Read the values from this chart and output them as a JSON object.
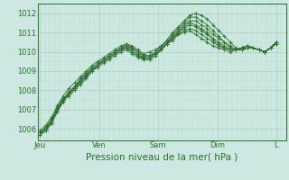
{
  "background_color": "#cce8e0",
  "grid_major_color": "#aaccbb",
  "grid_minor_color": "#bbddcc",
  "line_color": "#2d6e2d",
  "ylabel_values": [
    1006,
    1007,
    1008,
    1009,
    1010,
    1011,
    1012
  ],
  "xtick_labels": [
    "Jeu",
    "Ven",
    "Sam",
    "Dim",
    "L"
  ],
  "xtick_positions": [
    0,
    24,
    48,
    72,
    96
  ],
  "xlabel": "Pression niveau de la mer( hPa )",
  "xlim": [
    -1,
    100
  ],
  "ylim": [
    1005.4,
    1012.5
  ],
  "series": [
    [
      1005.8,
      1006.0,
      1006.3,
      1007.0,
      1007.5,
      1007.7,
      1008.0,
      1008.3,
      1008.6,
      1009.0,
      1009.3,
      1009.6,
      1009.8,
      1010.0,
      1010.2,
      1010.4,
      1010.3,
      1010.1,
      1009.9,
      1010.0,
      1010.1,
      1010.3,
      1010.5,
      1010.7,
      1010.9,
      1011.0,
      1011.1,
      1010.9,
      1010.7,
      1010.5,
      1010.3,
      1010.2,
      1010.1,
      1010.0,
      1010.1,
      1010.2,
      1010.3,
      1010.2,
      1010.1,
      1010.0,
      1010.2,
      1010.4
    ],
    [
      1005.8,
      1006.1,
      1006.5,
      1007.1,
      1007.6,
      1007.8,
      1008.1,
      1008.4,
      1008.7,
      1009.0,
      1009.3,
      1009.5,
      1009.7,
      1009.9,
      1010.1,
      1010.3,
      1010.2,
      1010.0,
      1009.8,
      1009.8,
      1009.9,
      1010.1,
      1010.4,
      1010.6,
      1010.9,
      1011.1,
      1011.2,
      1011.1,
      1010.9,
      1010.7,
      1010.5,
      1010.3,
      1010.2,
      1010.1,
      1010.1,
      1010.2,
      1010.3,
      1010.2,
      1010.1,
      1010.0,
      1010.2,
      1010.4
    ],
    [
      1005.8,
      1006.0,
      1006.4,
      1007.0,
      1007.5,
      1007.9,
      1008.2,
      1008.5,
      1008.8,
      1009.1,
      1009.3,
      1009.5,
      1009.7,
      1009.9,
      1010.1,
      1010.2,
      1010.0,
      1009.8,
      1009.7,
      1009.7,
      1009.9,
      1010.1,
      1010.4,
      1010.7,
      1011.0,
      1011.2,
      1011.4,
      1011.3,
      1011.1,
      1010.9,
      1010.6,
      1010.4,
      1010.2,
      1010.1,
      1010.1,
      1010.2,
      1010.3,
      1010.2,
      1010.1,
      1010.0,
      1010.2,
      1010.5
    ],
    [
      1005.7,
      1005.9,
      1006.3,
      1006.9,
      1007.4,
      1007.8,
      1008.1,
      1008.4,
      1008.7,
      1009.0,
      1009.2,
      1009.4,
      1009.6,
      1009.8,
      1010.0,
      1010.1,
      1009.9,
      1009.7,
      1009.6,
      1009.6,
      1009.8,
      1010.1,
      1010.4,
      1010.7,
      1011.0,
      1011.3,
      1011.5,
      1011.4,
      1011.2,
      1011.0,
      1010.7,
      1010.5,
      1010.3,
      1010.1,
      1010.1,
      1010.2,
      1010.3,
      1010.2,
      1010.1,
      1010.0,
      1010.2,
      1010.5
    ],
    [
      1005.7,
      1005.9,
      1006.3,
      1006.9,
      1007.4,
      1007.8,
      1008.1,
      1008.5,
      1008.8,
      1009.1,
      1009.3,
      1009.5,
      1009.7,
      1009.9,
      1010.1,
      1010.2,
      1010.0,
      1009.8,
      1009.6,
      1009.6,
      1009.8,
      1010.1,
      1010.4,
      1010.8,
      1011.1,
      1011.4,
      1011.6,
      1011.6,
      1011.4,
      1011.2,
      1010.9,
      1010.7,
      1010.5,
      1010.2,
      1010.1,
      1010.1,
      1010.2,
      1010.2,
      1010.1,
      1010.0,
      1010.2,
      1010.5
    ],
    [
      1005.8,
      1006.0,
      1006.4,
      1007.0,
      1007.5,
      1007.9,
      1008.2,
      1008.6,
      1008.9,
      1009.2,
      1009.4,
      1009.6,
      1009.8,
      1010.0,
      1010.2,
      1010.3,
      1010.1,
      1009.9,
      1009.7,
      1009.7,
      1009.9,
      1010.2,
      1010.5,
      1010.9,
      1011.2,
      1011.5,
      1011.8,
      1011.8,
      1011.6,
      1011.4,
      1011.1,
      1010.8,
      1010.5,
      1010.3,
      1010.1,
      1010.1,
      1010.2,
      1010.2,
      1010.1,
      1010.0,
      1010.2,
      1010.5
    ],
    [
      1005.9,
      1006.2,
      1006.6,
      1007.2,
      1007.7,
      1008.1,
      1008.4,
      1008.7,
      1009.0,
      1009.3,
      1009.5,
      1009.7,
      1009.9,
      1010.1,
      1010.3,
      1010.4,
      1010.2,
      1010.0,
      1009.8,
      1009.8,
      1010.0,
      1010.3,
      1010.6,
      1011.0,
      1011.3,
      1011.6,
      1011.9,
      1012.0,
      1011.9,
      1011.7,
      1011.4,
      1011.1,
      1010.8,
      1010.5,
      1010.2,
      1010.1,
      1010.2,
      1010.2,
      1010.1,
      1010.0,
      1010.2,
      1010.5
    ]
  ],
  "n_points": 42,
  "marker": "+",
  "markersize": 2.5,
  "linewidth": 0.7,
  "fontsize_tick": 6,
  "fontsize_xlabel": 7.5
}
